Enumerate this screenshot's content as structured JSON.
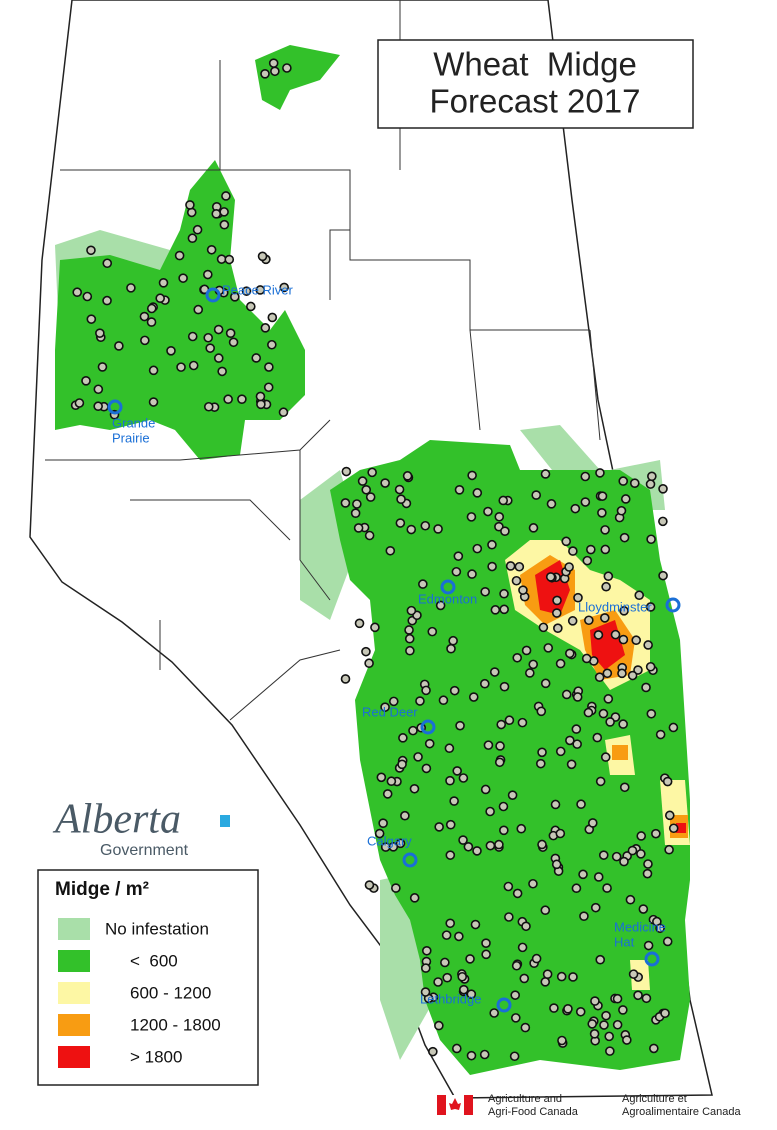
{
  "title": {
    "lines": [
      "Wheat  Midge",
      "Forecast 2017"
    ]
  },
  "cities": [
    {
      "name": [
        "Peace River"
      ]
    },
    {
      "name": [
        "Grande",
        "Prairie"
      ]
    },
    {
      "name": [
        "Edmonton"
      ]
    },
    {
      "name": [
        "Lloydminster"
      ]
    },
    {
      "name": [
        "Red Deer"
      ]
    },
    {
      "name": [
        "Calgary"
      ]
    },
    {
      "name": [
        "Medicine",
        "Hat"
      ]
    },
    {
      "name": [
        "Lethbridge"
      ]
    }
  ],
  "branding": {
    "alberta": "Alberta",
    "government": "Government"
  },
  "legend": {
    "title": "Midge / m²",
    "items": [
      {
        "label": "No infestation",
        "color": "#a9dfa9"
      },
      {
        "label": "<  600",
        "color": "#33c12a"
      },
      {
        "label": "600 - 1200",
        "color": "#fdf7a4"
      },
      {
        "label": "1200 - 1800",
        "color": "#f89c12"
      },
      {
        "label": "> 1800",
        "color": "#ee1111"
      }
    ]
  },
  "footer": {
    "english": [
      "Agriculture and",
      "Agri-Food Canada"
    ],
    "french": [
      "Agriculture et",
      "Agroalimentaire Canada"
    ]
  }
}
